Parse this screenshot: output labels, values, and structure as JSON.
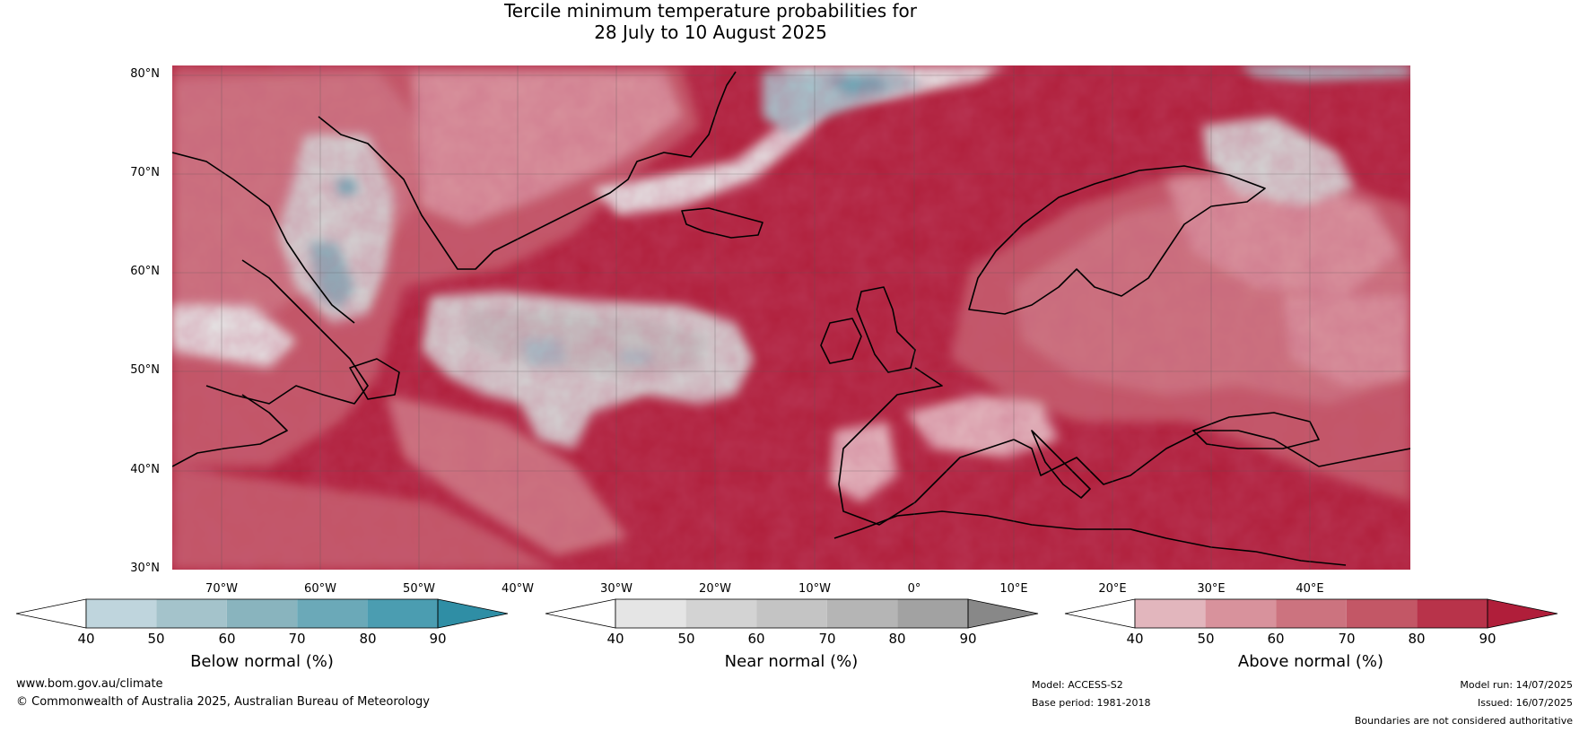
{
  "title": {
    "line1": "Tercile minimum temperature probabilities for",
    "line2": "28 July to 10 August 2025"
  },
  "lat_labels": [
    "80°N",
    "70°N",
    "60°N",
    "50°N",
    "40°N",
    "30°N"
  ],
  "lon_labels": [
    "70°W",
    "60°W",
    "50°W",
    "40°W",
    "30°W",
    "20°W",
    "10°W",
    "0°",
    "10°E",
    "20°E",
    "30°E",
    "40°E"
  ],
  "colorbars": [
    {
      "name": "below",
      "caption": "Below normal (%)",
      "ticks": [
        "40",
        "50",
        "60",
        "70",
        "80",
        "90"
      ],
      "colors": [
        "#ffffff",
        "#bfd5dd",
        "#a4c3cb",
        "#89b4be",
        "#6ba9b8",
        "#4b9db1",
        "#2f8ea5"
      ]
    },
    {
      "name": "near",
      "caption": "Near normal (%)",
      "ticks": [
        "40",
        "50",
        "60",
        "70",
        "80",
        "90"
      ],
      "colors": [
        "#ffffff",
        "#e5e5e5",
        "#d3d3d3",
        "#c4c4c4",
        "#b5b5b5",
        "#a2a2a2",
        "#888888"
      ]
    },
    {
      "name": "above",
      "caption": "Above normal (%)",
      "ticks": [
        "40",
        "50",
        "60",
        "70",
        "80",
        "90"
      ],
      "colors": [
        "#ffffff",
        "#e2b6bd",
        "#d8929c",
        "#cc737f",
        "#c35766",
        "#b8334a",
        "#b01e3a"
      ]
    }
  ],
  "footer": {
    "website": "www.bom.gov.au/climate",
    "copyright": "© Commonwealth of Australia 2025, Australian Bureau of Meteorology",
    "model": "Model: ACCESS-S2",
    "base_period": "Base period: 1981-2018",
    "model_run": "Model run: 14/07/2025",
    "issued": "Issued: 16/07/2025",
    "disclaimer": "Boundaries are not considered authoritative"
  }
}
